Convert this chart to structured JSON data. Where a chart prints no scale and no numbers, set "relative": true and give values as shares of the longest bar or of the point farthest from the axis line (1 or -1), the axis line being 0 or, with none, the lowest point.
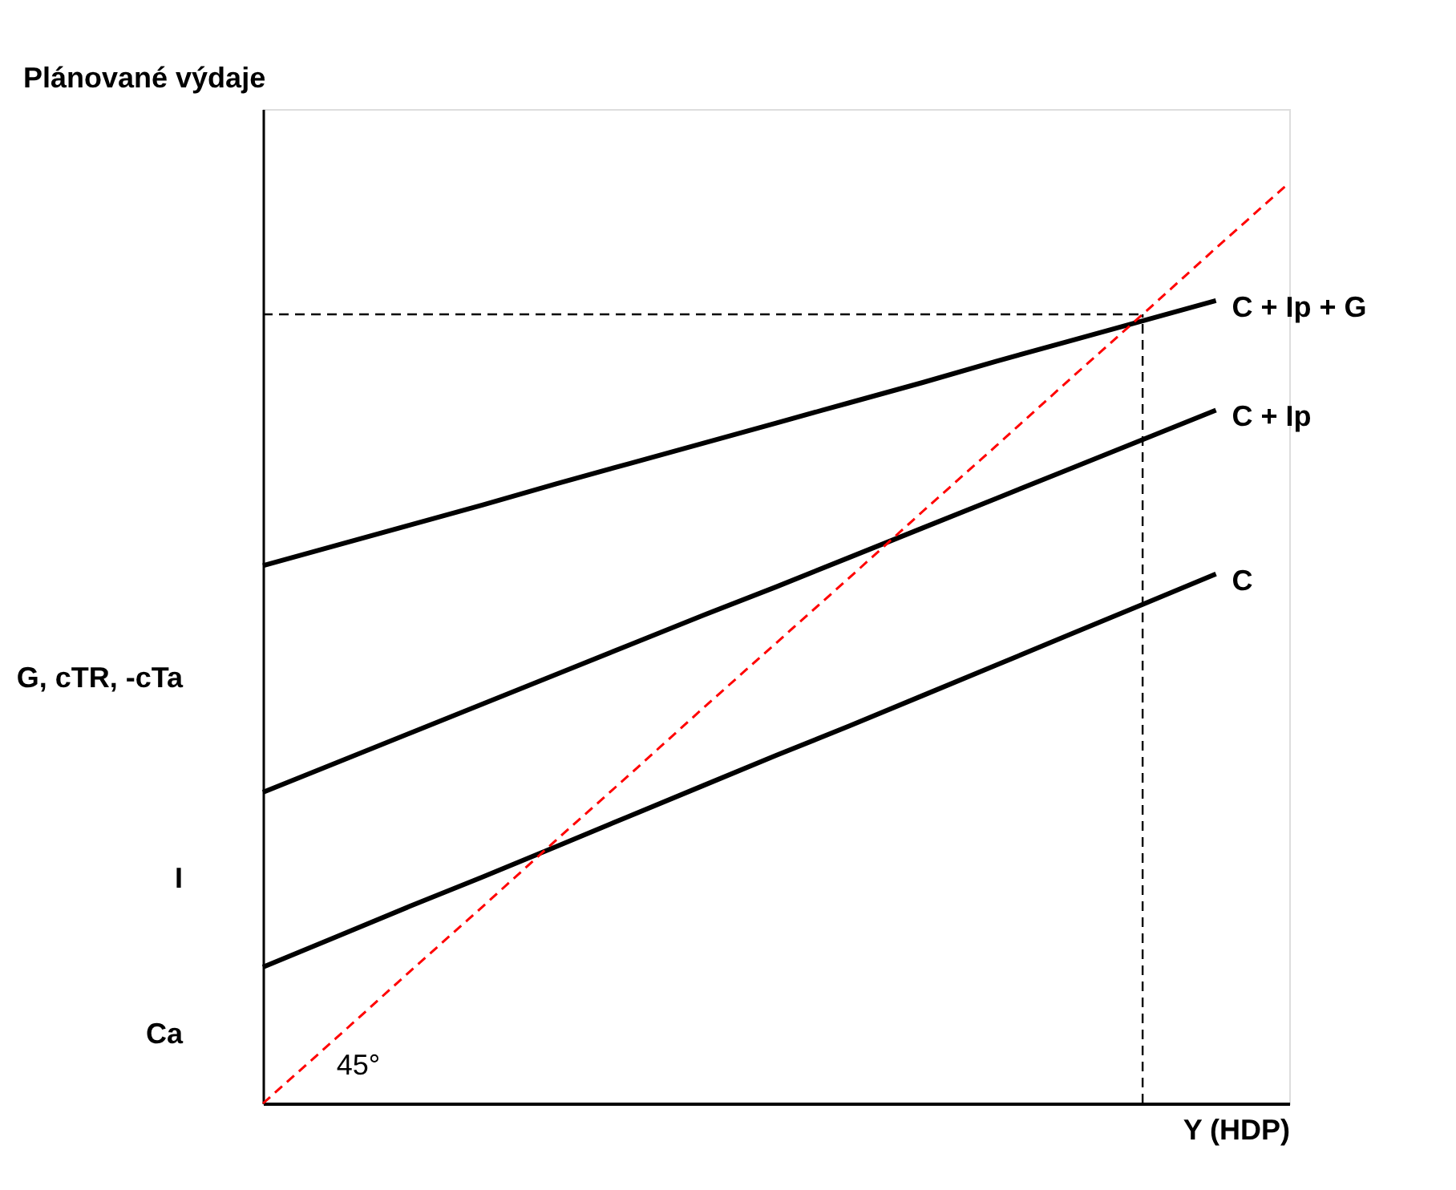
{
  "chart_data": {
    "type": "line",
    "relative": true,
    "xlabel": "Y (HDP)",
    "ylabel": "Plánované výdaje",
    "categories": [
      null,
      null,
      null,
      null,
      null,
      null,
      null,
      null,
      null,
      null,
      null,
      null,
      null,
      null,
      null
    ],
    "series": [
      {
        "name": "C",
        "color": "#000000",
        "values": [
          0.148,
          0.181,
          0.214,
          0.246,
          0.279,
          0.312,
          0.345,
          0.378,
          0.41,
          0.443,
          0.476,
          0.509,
          0.542,
          0.575,
          null
        ]
      },
      {
        "name": "C + Ip",
        "color": "#000000",
        "values": [
          0.338,
          0.37,
          0.402,
          0.434,
          0.466,
          0.498,
          0.53,
          0.561,
          0.593,
          0.625,
          0.657,
          0.689,
          0.721,
          0.753,
          null
        ]
      },
      {
        "name": "C + Ip + G",
        "color": "#000000",
        "values": [
          0.584,
          0.606,
          0.628,
          0.65,
          0.673,
          0.695,
          0.717,
          0.739,
          0.761,
          0.783,
          0.806,
          0.828,
          0.85,
          0.872,
          null
        ]
      },
      {
        "color": "#ff0000",
        "line_style": "dashed",
        "values": [
          0,
          0.071,
          0.143,
          0.214,
          0.286,
          0.357,
          0.429,
          0.5,
          0.571,
          0.643,
          0.714,
          0.786,
          0.857,
          0.929,
          1
        ]
      }
    ],
    "ref_lines": [
      {
        "axis": "y",
        "value": 0.857,
        "color": "#000000",
        "line_style": "dashed"
      }
    ],
    "annotations": [
      "G, cTR, -cTa",
      "I",
      "Ca",
      "45°"
    ]
  }
}
